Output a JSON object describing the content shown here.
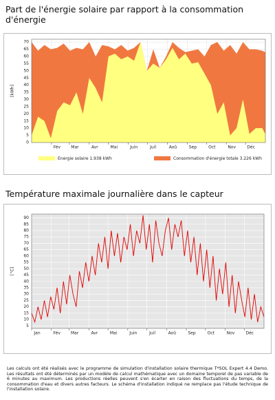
{
  "chart_data": [
    {
      "type": "area",
      "title": "Part de l'énergie solaire par rapport à la consommation d'énergie",
      "y_label": "[kWh]",
      "x": [
        0,
        10,
        20,
        30,
        40,
        50,
        60,
        70,
        80,
        90,
        100,
        110,
        120,
        130,
        140,
        150,
        160,
        170,
        180,
        190,
        200,
        210,
        220,
        230,
        240,
        250,
        260,
        270,
        280,
        290,
        300,
        310,
        320,
        330,
        340,
        350,
        360,
        365
      ],
      "xlim": [
        0,
        365
      ],
      "xticks": [
        {
          "value": 31,
          "label": "Fév"
        },
        {
          "value": 59,
          "label": "Mar"
        },
        {
          "value": 90,
          "label": "Avr"
        },
        {
          "value": 120,
          "label": "Mai"
        },
        {
          "value": 151,
          "label": "Juin"
        },
        {
          "value": 181,
          "label": "Juil"
        },
        {
          "value": 212,
          "label": "Aoû"
        },
        {
          "value": 243,
          "label": "Sep"
        },
        {
          "value": 273,
          "label": "Oct"
        },
        {
          "value": 304,
          "label": "Nov"
        },
        {
          "value": 334,
          "label": "Déc"
        }
      ],
      "ylim": [
        0,
        72
      ],
      "yticks": [
        0,
        5,
        10,
        15,
        20,
        25,
        30,
        35,
        40,
        45,
        50,
        55,
        60,
        65,
        70
      ],
      "grid": true,
      "series": [
        {
          "name": "Energie solaire 1.938 kWh",
          "color": "#ffff80",
          "values": [
            5,
            18,
            15,
            3,
            22,
            28,
            26,
            35,
            20,
            45,
            38,
            28,
            60,
            62,
            58,
            60,
            57,
            70,
            50,
            55,
            52,
            58,
            66,
            58,
            62,
            55,
            56,
            48,
            40,
            20,
            28,
            5,
            10,
            30,
            6,
            10,
            10,
            6
          ]
        },
        {
          "name": "Consommation d'énergie totale 3.226 kWh",
          "color": "#f07840",
          "values": [
            70,
            64,
            68,
            65,
            66,
            69,
            64,
            66,
            65,
            70,
            60,
            68,
            67,
            65,
            68,
            64,
            66,
            70,
            50,
            65,
            52,
            60,
            70,
            66,
            63,
            64,
            65,
            60,
            68,
            70,
            64,
            68,
            62,
            70,
            65,
            65,
            64,
            63
          ]
        }
      ]
    },
    {
      "type": "line",
      "title": "Température maximale journalière dans le capteur",
      "y_label": "[°C]",
      "x": [
        0,
        5,
        10,
        15,
        20,
        25,
        30,
        35,
        40,
        45,
        50,
        55,
        60,
        65,
        70,
        75,
        80,
        85,
        90,
        95,
        100,
        105,
        110,
        115,
        120,
        125,
        130,
        135,
        140,
        145,
        150,
        155,
        160,
        165,
        170,
        175,
        180,
        185,
        190,
        195,
        200,
        205,
        210,
        215,
        220,
        225,
        230,
        235,
        240,
        245,
        250,
        255,
        260,
        265,
        270,
        275,
        280,
        285,
        290,
        295,
        300,
        305,
        310,
        315,
        320,
        325,
        330,
        335,
        340,
        345,
        350,
        355,
        360,
        365
      ],
      "xlim": [
        0,
        365
      ],
      "xticks": [
        {
          "value": 0,
          "label": "Jan"
        },
        {
          "value": 31,
          "label": "Fév"
        },
        {
          "value": 59,
          "label": "Mar"
        },
        {
          "value": 90,
          "label": "Avr"
        },
        {
          "value": 120,
          "label": "Mai"
        },
        {
          "value": 151,
          "label": "Juin"
        },
        {
          "value": 181,
          "label": "Juil"
        },
        {
          "value": 212,
          "label": "Aoû"
        },
        {
          "value": 243,
          "label": "Sep"
        },
        {
          "value": 273,
          "label": "Oct"
        },
        {
          "value": 304,
          "label": "Nov"
        },
        {
          "value": 334,
          "label": "Déc"
        }
      ],
      "ylim": [
        3,
        93
      ],
      "yticks": [
        5,
        10,
        15,
        20,
        25,
        30,
        35,
        40,
        45,
        50,
        55,
        60,
        65,
        70,
        75,
        80,
        85,
        90
      ],
      "grid": true,
      "series": [
        {
          "color": "#e00000",
          "values": [
            15,
            8,
            20,
            10,
            25,
            12,
            28,
            18,
            35,
            15,
            40,
            22,
            45,
            30,
            20,
            48,
            35,
            55,
            40,
            60,
            45,
            70,
            55,
            75,
            50,
            80,
            60,
            78,
            55,
            75,
            65,
            85,
            60,
            80,
            70,
            92,
            65,
            85,
            55,
            88,
            70,
            60,
            80,
            90,
            65,
            85,
            75,
            88,
            60,
            80,
            55,
            75,
            45,
            70,
            40,
            65,
            35,
            60,
            25,
            50,
            30,
            55,
            20,
            45,
            15,
            40,
            25,
            12,
            35,
            10,
            30,
            8,
            20,
            12
          ]
        }
      ]
    }
  ],
  "footer": {
    "text": "Les calculs ont été réalisés avec le programme de simulation d'installation solaire thermique T*SOL Expert 4.4 Demo. Les résultats ont été déterminés par un modèle de calcul mathématique avec un domaine temporel de pas variable de 6 minutes au maximum. Les productions réelles peuvent s'en écarter en raison des fluctuations du temps, de la consommation d'eau et divers autres facteurs. Le schéma d'installation indiqué ne remplace pas l'étude technique de l'installation solaire."
  }
}
